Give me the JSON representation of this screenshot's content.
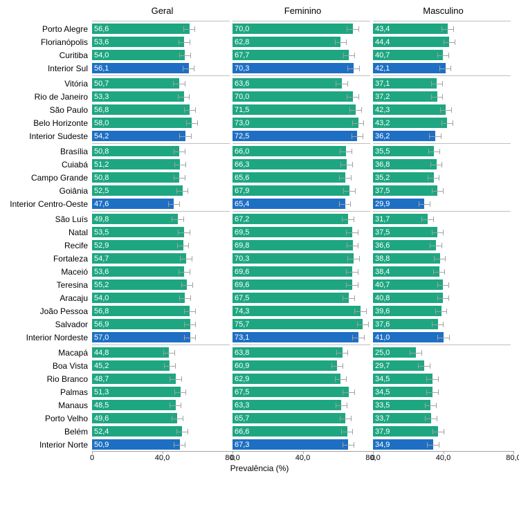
{
  "chart": {
    "type": "bar",
    "xlabel": "Prevalência (%)",
    "xlim": [
      0,
      80
    ],
    "ticks": [
      0,
      40,
      80
    ],
    "tick_labels": [
      "0",
      "40,0",
      "80,0"
    ],
    "background_color": "#ffffff",
    "axis_color": "#a2a2a2",
    "text_color": "#000000",
    "bar_text_color": "#ffffff",
    "label_fontsize": 12,
    "value_fontsize": 11,
    "panel_title_fontsize": 13,
    "colors": {
      "green": "#1ea681",
      "blue": "#1e6fc4"
    },
    "error_halfwidth": 3.5,
    "panels": [
      {
        "title": "Geral",
        "key": "geral"
      },
      {
        "title": "Feminino",
        "key": "feminino"
      },
      {
        "title": "Masculino",
        "key": "masculino"
      }
    ],
    "groups": [
      {
        "rows": [
          {
            "label": "Porto Alegre",
            "color": "green",
            "geral": "56,6",
            "feminino": "70,0",
            "masculino": "43,4"
          },
          {
            "label": "Florianópolis",
            "color": "green",
            "geral": "53,6",
            "feminino": "62,8",
            "masculino": "44,4"
          },
          {
            "label": "Curitiba",
            "color": "green",
            "geral": "54,0",
            "feminino": "67,7",
            "masculino": "40,7"
          },
          {
            "label": "Interior Sul",
            "color": "blue",
            "geral": "56,1",
            "feminino": "70,3",
            "masculino": "42,1"
          }
        ]
      },
      {
        "rows": [
          {
            "label": "Vitória",
            "color": "green",
            "geral": "50,7",
            "feminino": "63,6",
            "masculino": "37,1"
          },
          {
            "label": "Rio de Janeiro",
            "color": "green",
            "geral": "53,3",
            "feminino": "70,0",
            "masculino": "37,2"
          },
          {
            "label": "São Paulo",
            "color": "green",
            "geral": "56,8",
            "feminino": "71,5",
            "masculino": "42,3"
          },
          {
            "label": "Belo Horizonte",
            "color": "green",
            "geral": "58,0",
            "feminino": "73,0",
            "masculino": "43,2"
          },
          {
            "label": "Interior Sudeste",
            "color": "blue",
            "geral": "54,2",
            "feminino": "72,5",
            "masculino": "36,2"
          }
        ]
      },
      {
        "rows": [
          {
            "label": "Brasília",
            "color": "green",
            "geral": "50,8",
            "feminino": "66,0",
            "masculino": "35,5"
          },
          {
            "label": "Cuiabá",
            "color": "green",
            "geral": "51,2",
            "feminino": "66,3",
            "masculino": "36,8"
          },
          {
            "label": "Campo Grande",
            "color": "green",
            "geral": "50,8",
            "feminino": "65,6",
            "masculino": "35,2"
          },
          {
            "label": "Goiânia",
            "color": "green",
            "geral": "52,5",
            "feminino": "67,9",
            "masculino": "37,5"
          },
          {
            "label": "Interior Centro-Oeste",
            "color": "blue",
            "geral": "47,6",
            "feminino": "65,4",
            "masculino": "29,9"
          }
        ]
      },
      {
        "rows": [
          {
            "label": "São Luís",
            "color": "green",
            "geral": "49,8",
            "feminino": "67,2",
            "masculino": "31,7"
          },
          {
            "label": "Natal",
            "color": "green",
            "geral": "53,5",
            "feminino": "69,5",
            "masculino": "37,5"
          },
          {
            "label": "Recife",
            "color": "green",
            "geral": "52,9",
            "feminino": "69,8",
            "masculino": "36,6"
          },
          {
            "label": "Fortaleza",
            "color": "green",
            "geral": "54,7",
            "feminino": "70,3",
            "masculino": "38,8"
          },
          {
            "label": "Maceió",
            "color": "green",
            "geral": "53,6",
            "feminino": "69,6",
            "masculino": "38,4"
          },
          {
            "label": "Teresina",
            "color": "green",
            "geral": "55,2",
            "feminino": "69,6",
            "masculino": "40,7"
          },
          {
            "label": "Aracaju",
            "color": "green",
            "geral": "54,0",
            "feminino": "67,5",
            "masculino": "40,8"
          },
          {
            "label": "João Pessoa",
            "color": "green",
            "geral": "56,8",
            "feminino": "74,3",
            "masculino": "39,6"
          },
          {
            "label": "Salvador",
            "color": "green",
            "geral": "56,9",
            "feminino": "75,7",
            "masculino": "37,6"
          },
          {
            "label": "Interior Nordeste",
            "color": "blue",
            "geral": "57,0",
            "feminino": "73,1",
            "masculino": "41,0"
          }
        ]
      },
      {
        "rows": [
          {
            "label": "Macapá",
            "color": "green",
            "geral": "44,8",
            "feminino": "63,8",
            "masculino": "25,0"
          },
          {
            "label": "Boa Vista",
            "color": "green",
            "geral": "45,2",
            "feminino": "60,9",
            "masculino": "29,7"
          },
          {
            "label": "Rio Branco",
            "color": "green",
            "geral": "48,7",
            "feminino": "62,9",
            "masculino": "34,5"
          },
          {
            "label": "Palmas",
            "color": "green",
            "geral": "51,3",
            "feminino": "67,5",
            "masculino": "34,5"
          },
          {
            "label": "Manaus",
            "color": "green",
            "geral": "48,5",
            "feminino": "63,3",
            "masculino": "33,5"
          },
          {
            "label": "Porto Velho",
            "color": "green",
            "geral": "49,6",
            "feminino": "65,7",
            "masculino": "33,7"
          },
          {
            "label": "Belém",
            "color": "green",
            "geral": "52,4",
            "feminino": "66,6",
            "masculino": "37,9"
          },
          {
            "label": "Interior Norte",
            "color": "blue",
            "geral": "50,9",
            "feminino": "67,3",
            "masculino": "34,9"
          }
        ]
      }
    ]
  }
}
